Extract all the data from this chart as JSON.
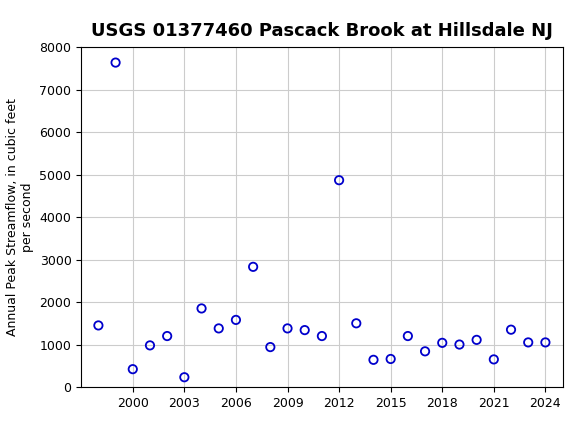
{
  "title": "USGS 01377460 Pascack Brook at Hillsdale NJ",
  "ylabel": "Annual Peak Streamflow, in cubic feet\nper second",
  "xlabel": "",
  "years": [
    1998,
    1999,
    2000,
    2001,
    2002,
    2003,
    2004,
    2005,
    2006,
    2007,
    2008,
    2009,
    2010,
    2011,
    2012,
    2013,
    2014,
    2015,
    2016,
    2017,
    2018,
    2019,
    2020,
    2021,
    2022,
    2023,
    2024
  ],
  "values": [
    1450,
    7640,
    420,
    980,
    1200,
    230,
    1850,
    1380,
    1580,
    2830,
    940,
    1380,
    1340,
    1200,
    4870,
    1500,
    640,
    660,
    1200,
    840,
    1040,
    1000,
    1110,
    650,
    1350,
    1050,
    1050
  ],
  "marker_color": "#0000cc",
  "marker_size": 36,
  "ylim": [
    0,
    8000
  ],
  "yticks": [
    0,
    1000,
    2000,
    3000,
    4000,
    5000,
    6000,
    7000,
    8000
  ],
  "xlim_min": 1997,
  "xlim_max": 2025,
  "xticks": [
    2000,
    2003,
    2006,
    2009,
    2012,
    2015,
    2018,
    2021,
    2024
  ],
  "grid_color": "#cccccc",
  "header_color": "#1a6b3c",
  "background_color": "#ffffff",
  "title_fontsize": 13,
  "axis_label_fontsize": 9,
  "tick_fontsize": 9
}
